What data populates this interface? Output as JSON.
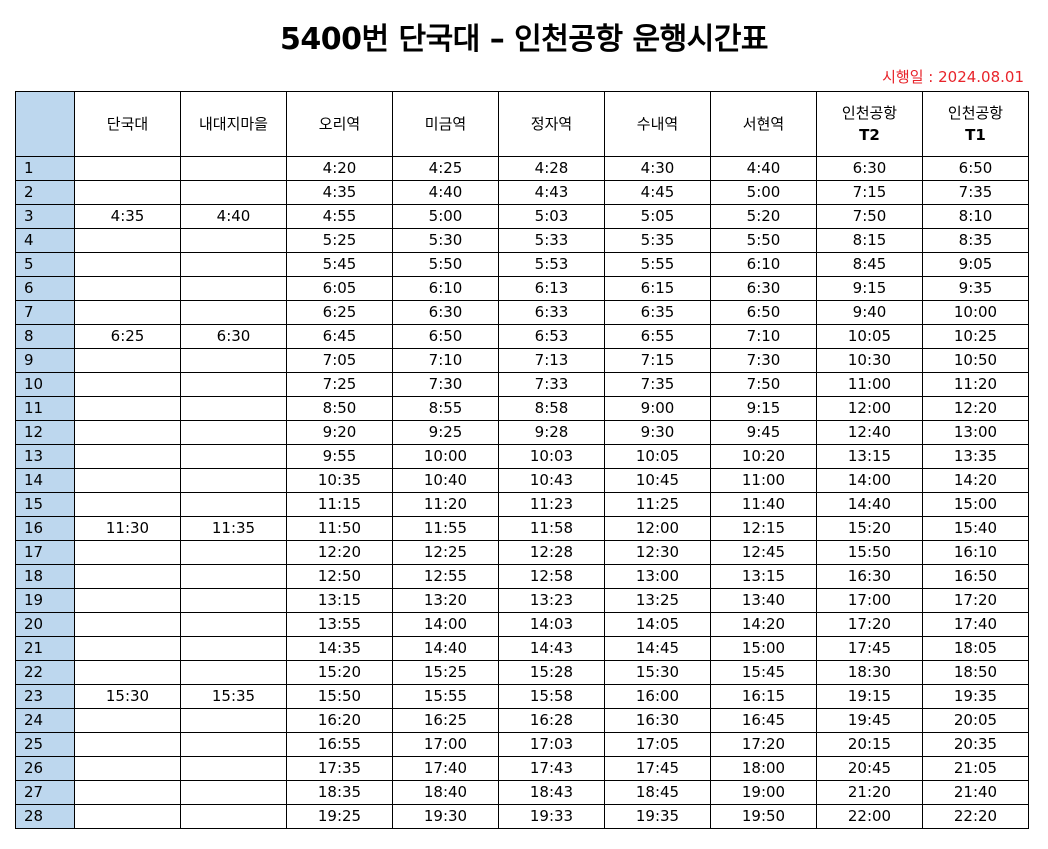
{
  "title": "5400번 단국대 – 인천공항 운행시간표",
  "effective_date": "시행일 : 2024.08.01",
  "columns": [
    "",
    "단국대",
    "내대지마을",
    "오리역",
    "미금역",
    "정자역",
    "수내역",
    "서현역",
    "인천공항 T2",
    "인천공항 T1"
  ],
  "rows": [
    {
      "no": "1",
      "times": [
        "",
        "",
        "4:20",
        "4:25",
        "4:28",
        "4:30",
        "4:40",
        "6:30",
        "6:50"
      ]
    },
    {
      "no": "2",
      "times": [
        "",
        "",
        "4:35",
        "4:40",
        "4:43",
        "4:45",
        "5:00",
        "7:15",
        "7:35"
      ]
    },
    {
      "no": "3",
      "times": [
        "4:35",
        "4:40",
        "4:55",
        "5:00",
        "5:03",
        "5:05",
        "5:20",
        "7:50",
        "8:10"
      ]
    },
    {
      "no": "4",
      "times": [
        "",
        "",
        "5:25",
        "5:30",
        "5:33",
        "5:35",
        "5:50",
        "8:15",
        "8:35"
      ]
    },
    {
      "no": "5",
      "times": [
        "",
        "",
        "5:45",
        "5:50",
        "5:53",
        "5:55",
        "6:10",
        "8:45",
        "9:05"
      ]
    },
    {
      "no": "6",
      "times": [
        "",
        "",
        "6:05",
        "6:10",
        "6:13",
        "6:15",
        "6:30",
        "9:15",
        "9:35"
      ]
    },
    {
      "no": "7",
      "times": [
        "",
        "",
        "6:25",
        "6:30",
        "6:33",
        "6:35",
        "6:50",
        "9:40",
        "10:00"
      ]
    },
    {
      "no": "8",
      "times": [
        "6:25",
        "6:30",
        "6:45",
        "6:50",
        "6:53",
        "6:55",
        "7:10",
        "10:05",
        "10:25"
      ]
    },
    {
      "no": "9",
      "times": [
        "",
        "",
        "7:05",
        "7:10",
        "7:13",
        "7:15",
        "7:30",
        "10:30",
        "10:50"
      ]
    },
    {
      "no": "10",
      "times": [
        "",
        "",
        "7:25",
        "7:30",
        "7:33",
        "7:35",
        "7:50",
        "11:00",
        "11:20"
      ]
    },
    {
      "no": "11",
      "times": [
        "",
        "",
        "8:50",
        "8:55",
        "8:58",
        "9:00",
        "9:15",
        "12:00",
        "12:20"
      ]
    },
    {
      "no": "12",
      "times": [
        "",
        "",
        "9:20",
        "9:25",
        "9:28",
        "9:30",
        "9:45",
        "12:40",
        "13:00"
      ]
    },
    {
      "no": "13",
      "times": [
        "",
        "",
        "9:55",
        "10:00",
        "10:03",
        "10:05",
        "10:20",
        "13:15",
        "13:35"
      ]
    },
    {
      "no": "14",
      "times": [
        "",
        "",
        "10:35",
        "10:40",
        "10:43",
        "10:45",
        "11:00",
        "14:00",
        "14:20"
      ]
    },
    {
      "no": "15",
      "times": [
        "",
        "",
        "11:15",
        "11:20",
        "11:23",
        "11:25",
        "11:40",
        "14:40",
        "15:00"
      ]
    },
    {
      "no": "16",
      "times": [
        "11:30",
        "11:35",
        "11:50",
        "11:55",
        "11:58",
        "12:00",
        "12:15",
        "15:20",
        "15:40"
      ]
    },
    {
      "no": "17",
      "times": [
        "",
        "",
        "12:20",
        "12:25",
        "12:28",
        "12:30",
        "12:45",
        "15:50",
        "16:10"
      ]
    },
    {
      "no": "18",
      "times": [
        "",
        "",
        "12:50",
        "12:55",
        "12:58",
        "13:00",
        "13:15",
        "16:30",
        "16:50"
      ]
    },
    {
      "no": "19",
      "times": [
        "",
        "",
        "13:15",
        "13:20",
        "13:23",
        "13:25",
        "13:40",
        "17:00",
        "17:20"
      ]
    },
    {
      "no": "20",
      "times": [
        "",
        "",
        "13:55",
        "14:00",
        "14:03",
        "14:05",
        "14:20",
        "17:20",
        "17:40"
      ]
    },
    {
      "no": "21",
      "times": [
        "",
        "",
        "14:35",
        "14:40",
        "14:43",
        "14:45",
        "15:00",
        "17:45",
        "18:05"
      ]
    },
    {
      "no": "22",
      "times": [
        "",
        "",
        "15:20",
        "15:25",
        "15:28",
        "15:30",
        "15:45",
        "18:30",
        "18:50"
      ]
    },
    {
      "no": "23",
      "times": [
        "15:30",
        "15:35",
        "15:50",
        "15:55",
        "15:58",
        "16:00",
        "16:15",
        "19:15",
        "19:35"
      ]
    },
    {
      "no": "24",
      "times": [
        "",
        "",
        "16:20",
        "16:25",
        "16:28",
        "16:30",
        "16:45",
        "19:45",
        "20:05"
      ]
    },
    {
      "no": "25",
      "times": [
        "",
        "",
        "16:55",
        "17:00",
        "17:03",
        "17:05",
        "17:20",
        "20:15",
        "20:35"
      ]
    },
    {
      "no": "26",
      "times": [
        "",
        "",
        "17:35",
        "17:40",
        "17:43",
        "17:45",
        "18:00",
        "20:45",
        "21:05"
      ]
    },
    {
      "no": "27",
      "times": [
        "",
        "",
        "18:35",
        "18:40",
        "18:43",
        "18:45",
        "19:00",
        "21:20",
        "21:40"
      ]
    },
    {
      "no": "28",
      "times": [
        "",
        "",
        "19:25",
        "19:30",
        "19:33",
        "19:35",
        "19:50",
        "22:00",
        "22:20"
      ]
    }
  ],
  "colors": {
    "header_fill": "#bdd7ee",
    "effective_date_text": "#e8242b",
    "border": "#000000"
  }
}
